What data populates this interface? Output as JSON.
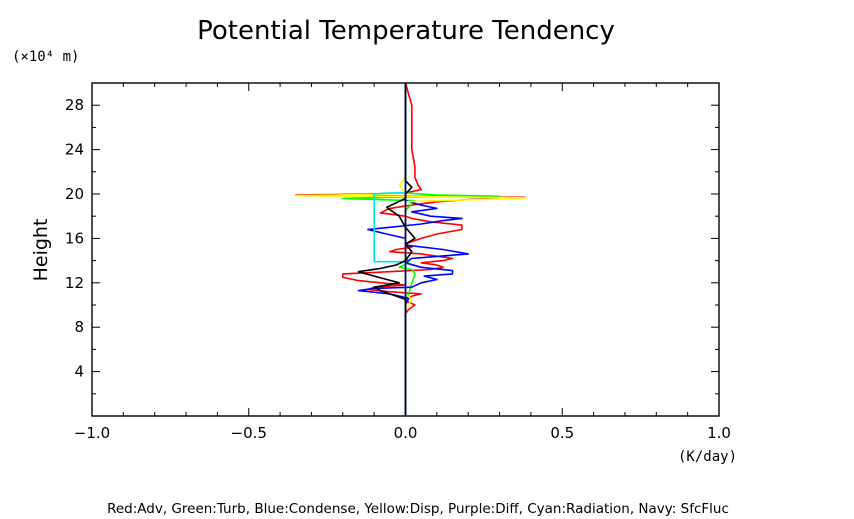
{
  "chart_data": {
    "type": "line",
    "title": "Potential Temperature Tendency",
    "xlabel": "",
    "xunit": "(K/day)",
    "ylabel": "Height",
    "yunit": "(×10⁴ m)",
    "xlim": [
      -1.0,
      1.0
    ],
    "ylim": [
      0,
      30
    ],
    "xticks": [
      -1.0,
      -0.5,
      0.0,
      0.5,
      1.0
    ],
    "xtick_labels": [
      "−1.0",
      "−0.5",
      "0.0",
      "0.5",
      "1.0"
    ],
    "yticks": [
      4,
      8,
      12,
      16,
      20,
      24,
      28
    ],
    "ytick_labels": [
      "4",
      "8",
      "12",
      "16",
      "20",
      "24",
      "28"
    ],
    "grid": false,
    "legend_text": "Red:Adv, Green:Turb, Blue:Condense, Yellow:Disp, Purple:Diff, Cyan:Radiation, Navy: SfcFluc",
    "series": [
      {
        "name": "Adv",
        "color": "#ff0000",
        "points": [
          [
            0.0,
            0
          ],
          [
            0.0,
            8
          ],
          [
            0.0,
            9.2
          ],
          [
            0.01,
            9.6
          ],
          [
            0.03,
            10.0
          ],
          [
            0.0,
            10.4
          ],
          [
            0.02,
            10.8
          ],
          [
            0.05,
            11.0
          ],
          [
            -0.05,
            11.2
          ],
          [
            -0.12,
            11.4
          ],
          [
            -0.1,
            11.6
          ],
          [
            0.0,
            11.8
          ],
          [
            -0.08,
            12.0
          ],
          [
            -0.15,
            12.2
          ],
          [
            -0.2,
            12.5
          ],
          [
            -0.2,
            12.8
          ],
          [
            -0.05,
            13.0
          ],
          [
            0.08,
            13.2
          ],
          [
            0.12,
            13.4
          ],
          [
            0.1,
            13.6
          ],
          [
            0.05,
            13.8
          ],
          [
            0.12,
            14.0
          ],
          [
            0.15,
            14.2
          ],
          [
            0.1,
            14.4
          ],
          [
            0.05,
            14.6
          ],
          [
            -0.05,
            14.8
          ],
          [
            -0.03,
            15.0
          ],
          [
            0.02,
            15.2
          ],
          [
            0.0,
            15.5
          ],
          [
            0.05,
            16.0
          ],
          [
            0.1,
            16.4
          ],
          [
            0.18,
            16.8
          ],
          [
            0.18,
            17.2
          ],
          [
            0.08,
            17.5
          ],
          [
            0.02,
            17.8
          ],
          [
            0.0,
            18.0
          ],
          [
            -0.08,
            18.3
          ],
          [
            -0.05,
            18.7
          ],
          [
            0.02,
            19.0
          ],
          [
            0.1,
            19.3
          ],
          [
            0.2,
            19.5
          ],
          [
            0.38,
            19.7
          ],
          [
            0.2,
            19.75
          ],
          [
            0.0,
            19.8
          ],
          [
            -0.15,
            19.85
          ],
          [
            -0.35,
            19.9
          ],
          [
            -0.1,
            20.0
          ],
          [
            0.0,
            20.1
          ],
          [
            0.05,
            20.4
          ],
          [
            0.04,
            20.8
          ],
          [
            0.03,
            21.5
          ],
          [
            0.03,
            22.5
          ],
          [
            0.02,
            24.0
          ],
          [
            0.02,
            26.0
          ],
          [
            0.02,
            28.0
          ],
          [
            0.01,
            29.0
          ],
          [
            0.0,
            30.0
          ]
        ]
      },
      {
        "name": "Turb",
        "color": "#00ff00",
        "points": [
          [
            0.0,
            0
          ],
          [
            0.0,
            10.0
          ],
          [
            0.01,
            11.0
          ],
          [
            0.03,
            12.8
          ],
          [
            0.02,
            13.2
          ],
          [
            -0.02,
            13.4
          ],
          [
            0.01,
            13.8
          ],
          [
            0.0,
            14.5
          ],
          [
            0.0,
            18.5
          ],
          [
            0.03,
            19.4
          ],
          [
            -0.1,
            19.5
          ],
          [
            -0.2,
            19.6
          ],
          [
            -0.05,
            19.7
          ],
          [
            0.1,
            19.75
          ],
          [
            0.3,
            19.8
          ],
          [
            0.1,
            19.9
          ],
          [
            0.0,
            20.1
          ],
          [
            0.0,
            30.0
          ]
        ]
      },
      {
        "name": "Condense",
        "color": "#0000ff",
        "points": [
          [
            0.0,
            0
          ],
          [
            0.0,
            10.0
          ],
          [
            0.01,
            10.6
          ],
          [
            -0.05,
            11.0
          ],
          [
            -0.15,
            11.3
          ],
          [
            -0.1,
            11.5
          ],
          [
            0.02,
            11.6
          ],
          [
            0.05,
            12.0
          ],
          [
            0.1,
            12.3
          ],
          [
            0.06,
            12.6
          ],
          [
            0.15,
            12.8
          ],
          [
            0.15,
            13.1
          ],
          [
            0.05,
            13.4
          ],
          [
            0.0,
            13.8
          ],
          [
            0.02,
            14.2
          ],
          [
            0.2,
            14.6
          ],
          [
            0.12,
            15.0
          ],
          [
            0.0,
            15.4
          ],
          [
            0.0,
            16.0
          ],
          [
            -0.06,
            16.4
          ],
          [
            -0.12,
            16.8
          ],
          [
            -0.05,
            17.0
          ],
          [
            0.05,
            17.3
          ],
          [
            0.12,
            17.6
          ],
          [
            0.18,
            17.8
          ],
          [
            0.08,
            18.0
          ],
          [
            0.02,
            18.4
          ],
          [
            0.1,
            18.7
          ],
          [
            0.05,
            19.0
          ],
          [
            0.0,
            19.4
          ],
          [
            0.0,
            30.0
          ]
        ]
      },
      {
        "name": "Disp",
        "color": "#ffff00",
        "points": [
          [
            0.0,
            0
          ],
          [
            0.0,
            9.5
          ],
          [
            0.02,
            10.5
          ],
          [
            0.0,
            11.0
          ],
          [
            0.0,
            19.3
          ],
          [
            0.1,
            19.4
          ],
          [
            0.3,
            19.55
          ],
          [
            0.38,
            19.65
          ],
          [
            0.1,
            19.75
          ],
          [
            -0.1,
            19.8
          ],
          [
            -0.35,
            19.85
          ],
          [
            -0.1,
            19.95
          ],
          [
            0.0,
            20.1
          ],
          [
            -0.02,
            20.8
          ],
          [
            0.0,
            21.5
          ],
          [
            0.0,
            30.0
          ]
        ]
      },
      {
        "name": "Diff",
        "color": "#800080",
        "points": [
          [
            0.0,
            0
          ],
          [
            0.0,
            30.0
          ]
        ]
      },
      {
        "name": "Radiation",
        "color": "#00e5e5",
        "points": [
          [
            0.0,
            0
          ],
          [
            0.0,
            0.2
          ],
          [
            0.0,
            13.9
          ],
          [
            -0.1,
            13.9
          ],
          [
            -0.1,
            20.0
          ],
          [
            -0.05,
            20.1
          ],
          [
            0.0,
            20.1
          ],
          [
            0.0,
            30.0
          ]
        ]
      },
      {
        "name": "SfcFluc",
        "color": "#000080",
        "points": [
          [
            0.0,
            0
          ],
          [
            0.0,
            30.0
          ]
        ]
      },
      {
        "name": "",
        "color": "#000000",
        "points": [
          [
            0.0,
            0
          ],
          [
            0.0,
            9.0
          ],
          [
            0.0,
            10.5
          ],
          [
            -0.08,
            11.3
          ],
          [
            -0.1,
            11.6
          ],
          [
            -0.02,
            12.0
          ],
          [
            -0.1,
            12.6
          ],
          [
            -0.15,
            13.0
          ],
          [
            -0.08,
            13.3
          ],
          [
            -0.03,
            13.6
          ],
          [
            0.0,
            14.0
          ],
          [
            0.02,
            14.8
          ],
          [
            0.0,
            15.5
          ],
          [
            0.03,
            16.0
          ],
          [
            0.0,
            17.0
          ],
          [
            -0.02,
            18.0
          ],
          [
            -0.06,
            18.8
          ],
          [
            -0.03,
            19.2
          ],
          [
            0.0,
            19.6
          ],
          [
            0.0,
            20.0
          ],
          [
            0.02,
            20.6
          ],
          [
            0.0,
            21.2
          ],
          [
            0.0,
            30.0
          ]
        ]
      }
    ]
  }
}
